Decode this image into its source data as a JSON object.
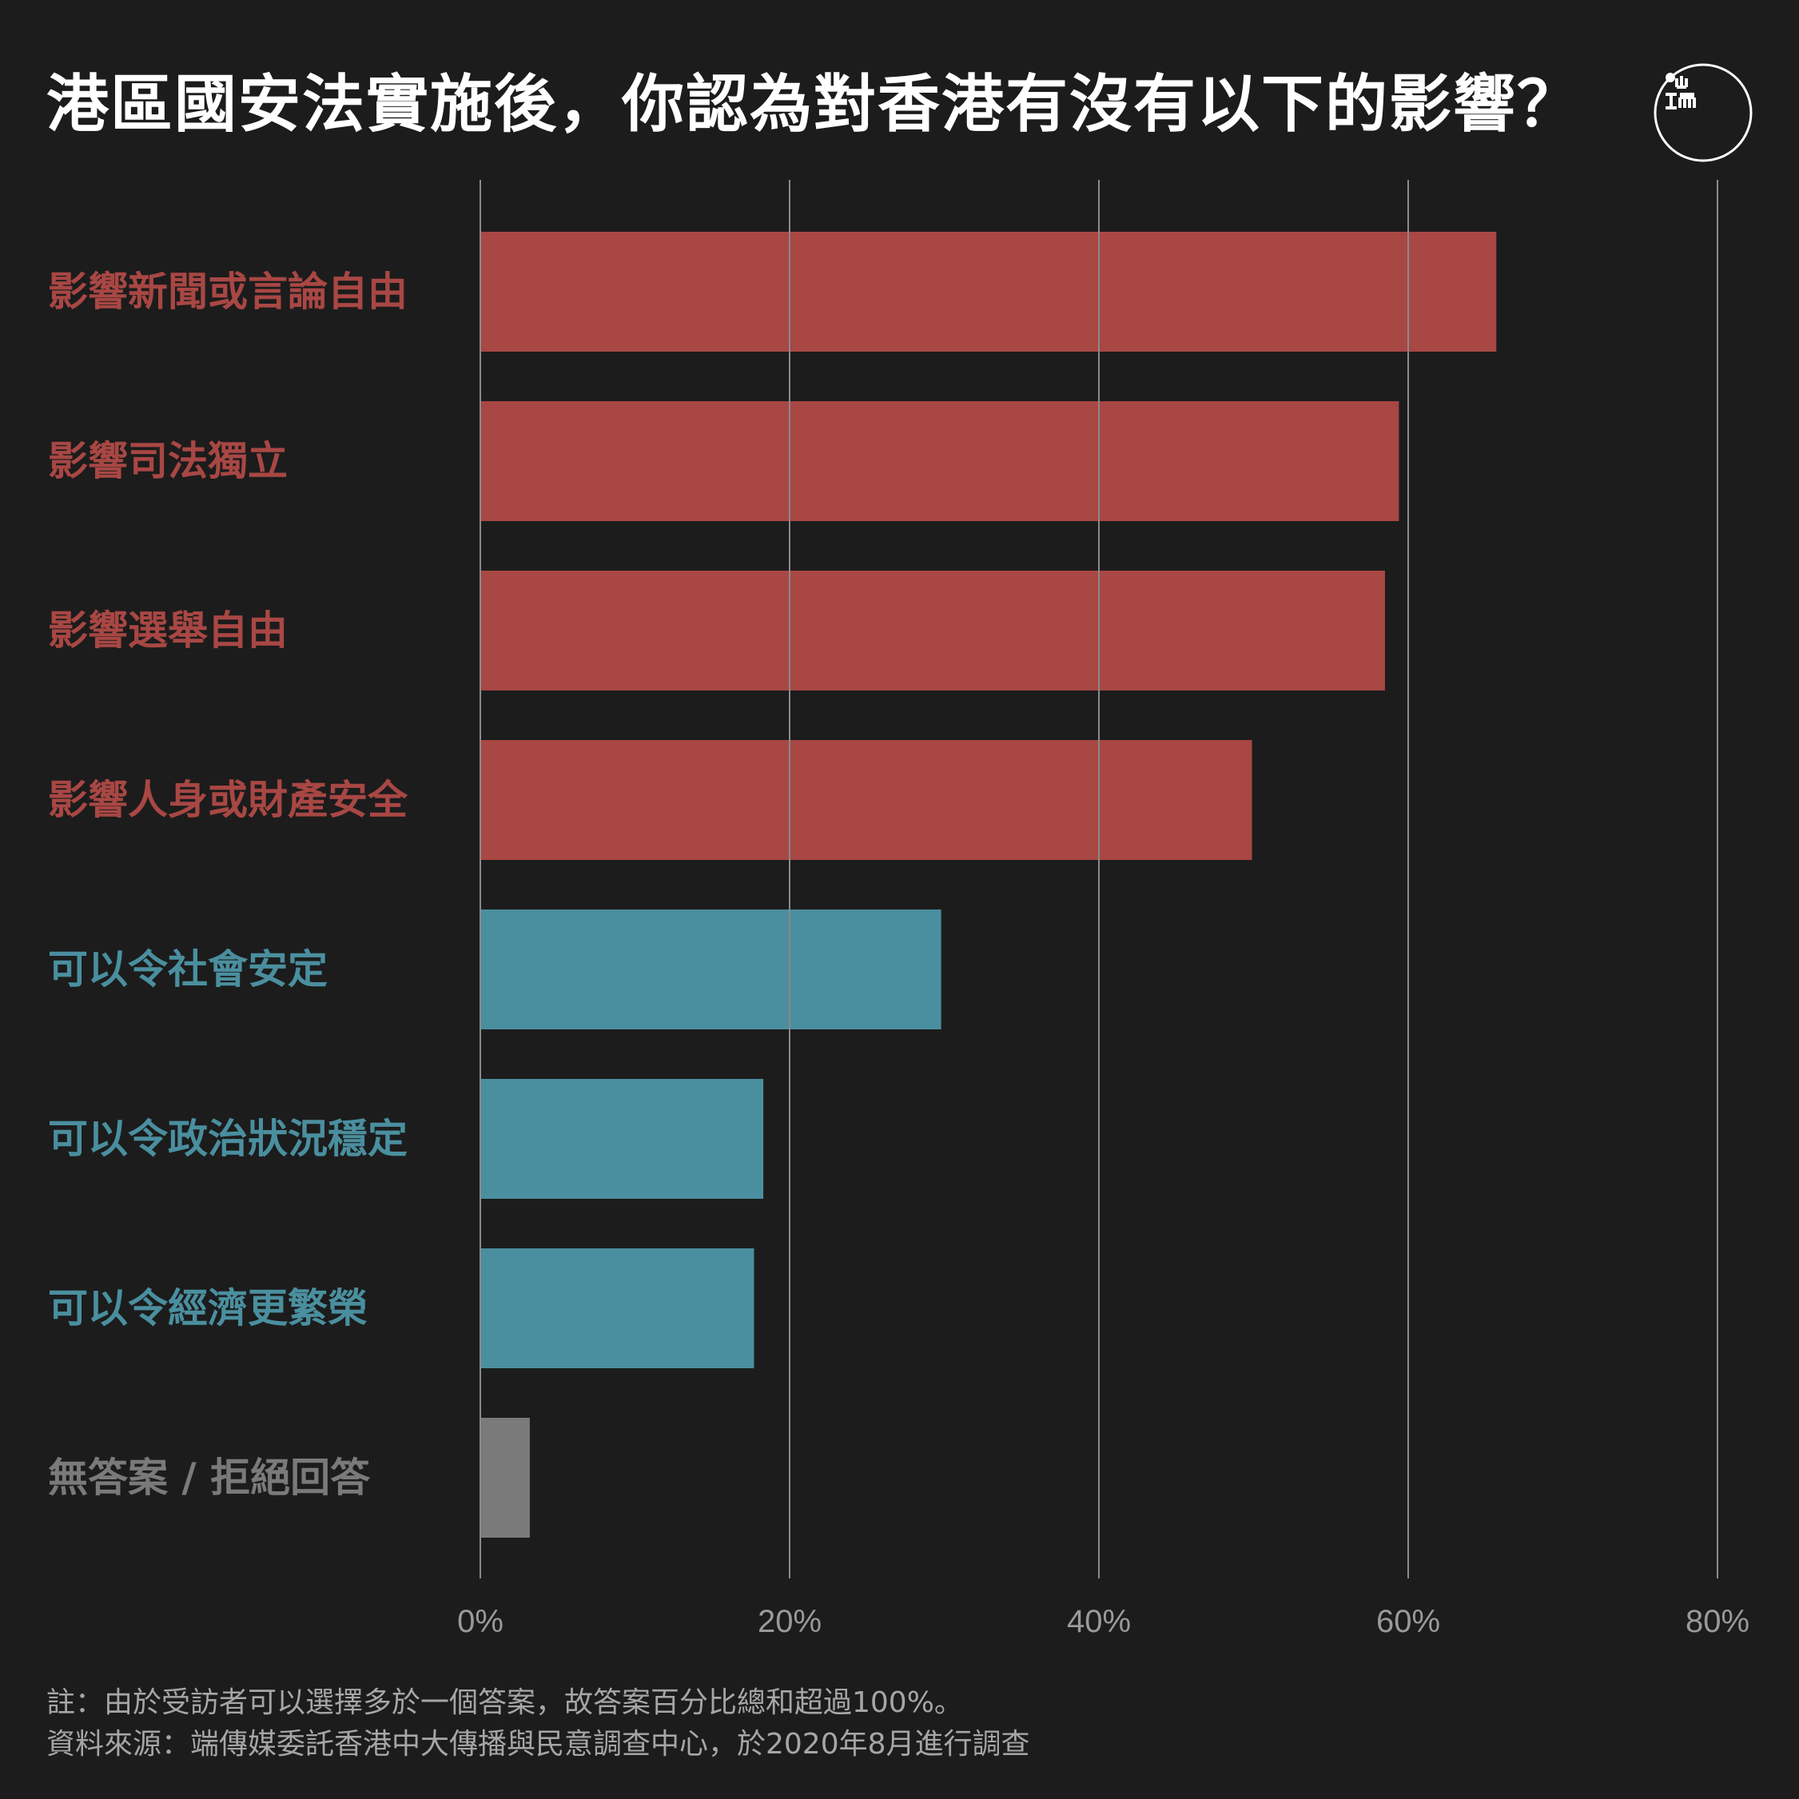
{
  "title": "港區國安法實施後，你認為對香港有沒有以下的影響？",
  "logo": {
    "text": "端",
    "icon": "initium-logo-icon"
  },
  "colors": {
    "background": "#1c1c1c",
    "negative": "#a84744",
    "positive": "#4a8f9f",
    "neutral": "#7a7a7a",
    "grid": "#8a8a8a",
    "tick_text": "#9a9a9a"
  },
  "chart_data": {
    "type": "bar",
    "orientation": "horizontal",
    "title": "港區國安法實施後，你認為對香港有沒有以下的影響？",
    "xlabel": "",
    "ylabel": "",
    "xlim": [
      0,
      80
    ],
    "xticks": [
      0,
      20,
      40,
      60,
      80
    ],
    "xtick_labels": [
      "0%",
      "20%",
      "40%",
      "60%",
      "80%"
    ],
    "grid": true,
    "categories": [
      "影響新聞或言論自由",
      "影響司法獨立",
      "影響選舉自由",
      "影響人身或財產安全",
      "可以令社會安定",
      "可以令政治狀況穩定",
      "可以令經濟更繁榮",
      "無答案 / 拒絕回答"
    ],
    "values": [
      65.7,
      59.4,
      58.5,
      49.9,
      29.8,
      18.3,
      17.7,
      3.2
    ],
    "groups": [
      "negative",
      "negative",
      "negative",
      "negative",
      "positive",
      "positive",
      "positive",
      "neutral"
    ]
  },
  "footnote": {
    "note": "註：由於受訪者可以選擇多於一個答案，故答案百分比總和超過100%。",
    "source": "資料來源：端傳媒委託香港中大傳播與民意調查中心，於2020年8月進行調查"
  }
}
